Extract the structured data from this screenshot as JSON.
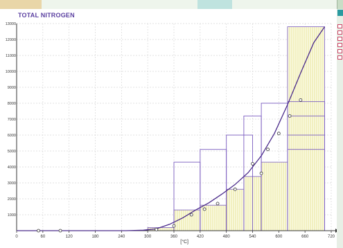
{
  "window": {
    "title": "TOTAL NITROGEN"
  },
  "colors": {
    "curve": "#4a2a8a",
    "bars": "#7a5cc0",
    "hatch": "#e8e59a",
    "grid": "#d8d8d8",
    "title": "#5a3fa0"
  },
  "chart_data": {
    "type": "line",
    "title": "TOTAL NITROGEN",
    "xlabel": "[°C]",
    "ylabel": "",
    "xlim": [
      0,
      720
    ],
    "ylim": [
      0,
      13000
    ],
    "x_ticks": [
      "0",
      "60",
      "120",
      "180",
      "240",
      "300",
      "360",
      "420",
      "480",
      "540",
      "600",
      "660",
      "720"
    ],
    "y_ticks": [
      "1000",
      "2000",
      "3000",
      "4000",
      "5000",
      "6000",
      "7000",
      "8000",
      "9000",
      "10000",
      "11000",
      "12000",
      "13000"
    ],
    "series": [
      {
        "type": "line",
        "x": [
          0,
          50,
          100,
          150,
          200,
          250,
          290,
          320,
          350,
          380,
          410,
          440,
          470,
          500,
          530,
          560,
          590,
          620,
          650,
          680,
          705
        ],
        "y": [
          0,
          0,
          0,
          0,
          0,
          0,
          30,
          120,
          400,
          800,
          1300,
          1750,
          2300,
          2900,
          3650,
          4700,
          6100,
          7900,
          9900,
          11800,
          12800
        ]
      },
      {
        "type": "scatter",
        "x": [
          50,
          100,
          320,
          360,
          400,
          430,
          460,
          500,
          540,
          560,
          575,
          600,
          625,
          650
        ],
        "y": [
          0,
          0,
          70,
          300,
          1000,
          1350,
          1700,
          2600,
          4200,
          3600,
          5100,
          6100,
          7200,
          8200
        ]
      }
    ],
    "bar_bins": [
      {
        "x0": 300,
        "x1": 360,
        "y": 200
      },
      {
        "x0": 360,
        "x1": 420,
        "y": 1300
      },
      {
        "x0": 420,
        "x1": 480,
        "y": 1600
      },
      {
        "x0": 480,
        "x1": 520,
        "y": 2600
      },
      {
        "x0": 520,
        "x1": 560,
        "y": 3400
      },
      {
        "x0": 560,
        "x1": 620,
        "y": 4300
      },
      {
        "x0": 620,
        "x1": 705,
        "y": 12800
      }
    ],
    "outline_rects": [
      {
        "x0": 360,
        "x1": 420,
        "y": 4300
      },
      {
        "x0": 420,
        "x1": 480,
        "y": 5100
      },
      {
        "x0": 480,
        "x1": 540,
        "y": 6000
      },
      {
        "x0": 520,
        "x1": 560,
        "y": 7200
      },
      {
        "x0": 560,
        "x1": 620,
        "y": 8000
      },
      {
        "x0": 620,
        "x1": 705,
        "y": 8100
      },
      {
        "x0": 620,
        "x1": 705,
        "y": 7200
      },
      {
        "x0": 620,
        "x1": 705,
        "y": 6000
      },
      {
        "x0": 620,
        "x1": 705,
        "y": 5100
      }
    ],
    "grid": true
  }
}
